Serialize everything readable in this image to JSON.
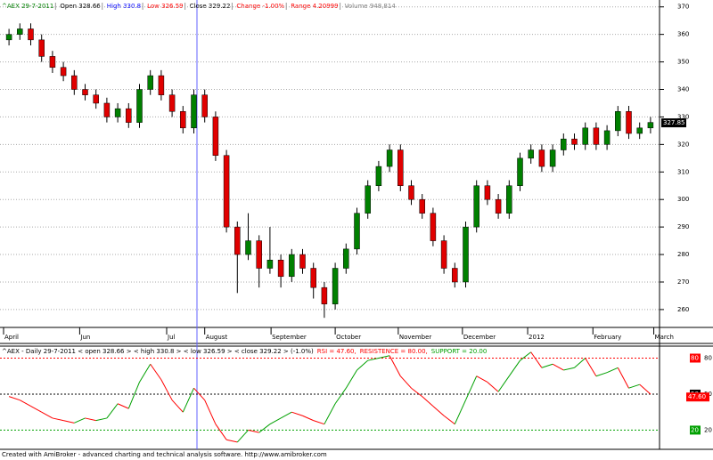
{
  "header": {
    "parts": [
      {
        "text": "^AEX 29-7-2011",
        "color": "#008000"
      },
      {
        "text": "Open 328.66",
        "color": "#000000"
      },
      {
        "text": "High 330.8",
        "color": "#0000ff"
      },
      {
        "text": "Low 326.59",
        "color": "#ff0000"
      },
      {
        "text": "Close 329.22",
        "color": "#000000"
      },
      {
        "text": "Change -1.00%",
        "color": "#ff0000"
      },
      {
        "text": "Range 4.20999",
        "color": "#ff0000"
      },
      {
        "text": "Volume 948,814",
        "color": "#808080"
      }
    ]
  },
  "chart_data": [
    {
      "type": "candlestick",
      "open": [
        358,
        360,
        362,
        358,
        352,
        348,
        345,
        340,
        338,
        335,
        330,
        333,
        328,
        340,
        345,
        338,
        332,
        326,
        338,
        330,
        316,
        290,
        280,
        285,
        275,
        278,
        272,
        280,
        275,
        268,
        262,
        275,
        282,
        295,
        305,
        312,
        318,
        305,
        300,
        295,
        285,
        275,
        270,
        290,
        305,
        300,
        295,
        305,
        315,
        318,
        312,
        318,
        322,
        320,
        326,
        320,
        325,
        332,
        324,
        326
      ],
      "high": [
        362,
        364,
        364,
        360,
        354,
        350,
        347,
        342,
        340,
        337,
        335,
        335,
        342,
        347,
        347,
        340,
        334,
        340,
        340,
        332,
        318,
        292,
        295,
        287,
        290,
        280,
        282,
        282,
        277,
        270,
        277,
        284,
        297,
        307,
        314,
        320,
        320,
        307,
        302,
        297,
        287,
        277,
        292,
        307,
        307,
        302,
        307,
        317,
        320,
        320,
        320,
        324,
        324,
        328,
        328,
        327,
        334,
        334,
        328,
        330
      ],
      "low": [
        356,
        358,
        356,
        350,
        346,
        343,
        338,
        336,
        333,
        328,
        328,
        326,
        326,
        338,
        336,
        330,
        324,
        324,
        328,
        314,
        288,
        266,
        278,
        268,
        273,
        268,
        270,
        273,
        264,
        257,
        260,
        273,
        280,
        293,
        303,
        310,
        303,
        298,
        293,
        283,
        273,
        268,
        268,
        288,
        298,
        293,
        293,
        303,
        313,
        310,
        310,
        316,
        318,
        318,
        318,
        318,
        323,
        322,
        322,
        324
      ],
      "close": [
        360,
        362,
        358,
        352,
        348,
        345,
        340,
        338,
        335,
        330,
        333,
        328,
        340,
        345,
        338,
        332,
        326,
        338,
        330,
        316,
        290,
        280,
        285,
        275,
        278,
        272,
        280,
        275,
        268,
        262,
        275,
        282,
        295,
        305,
        312,
        318,
        305,
        300,
        295,
        285,
        275,
        270,
        290,
        305,
        300,
        295,
        305,
        315,
        318,
        312,
        318,
        322,
        320,
        326,
        320,
        325,
        332,
        324,
        326,
        328
      ],
      "up_color": "#008000",
      "down_color": "#e00000",
      "xlim": [
        0,
        60
      ],
      "xticks": [
        {
          "value": 0,
          "label": "April"
        },
        {
          "value": 7,
          "label": "Jun"
        },
        {
          "value": 15,
          "label": "Jul"
        },
        {
          "value": 18.5,
          "label": "August"
        },
        {
          "value": 24.6,
          "label": "September"
        },
        {
          "value": 30.5,
          "label": "October"
        },
        {
          "value": 36.3,
          "label": "November"
        },
        {
          "value": 42.2,
          "label": "December"
        },
        {
          "value": 48.2,
          "label": "2012"
        },
        {
          "value": 54.2,
          "label": "February"
        },
        {
          "value": 59.8,
          "label": "March"
        }
      ],
      "ylim": [
        253.5,
        372.5
      ],
      "yticks": [
        260,
        270,
        280,
        290,
        300,
        310,
        320,
        330,
        340,
        350,
        360,
        370
      ],
      "grid": true,
      "last_value": 327.85
    },
    {
      "type": "line",
      "title_parts": [
        {
          "text": "^AEX - Daily 29-7-2011 < open 328.66 > < high 330.8 > < low 326.59 > < close 329.22 > (-1.0%)",
          "color": "#000000"
        },
        {
          "text": "RSI = 47.60,",
          "color": "#ff0000"
        },
        {
          "text": "RESISTENCE = 80.00,",
          "color": "#ff0000"
        },
        {
          "text": "SUPPORT = 20.00",
          "color": "#00a000"
        }
      ],
      "values": [
        48,
        45,
        40,
        35,
        30,
        28,
        26,
        30,
        28,
        30,
        42,
        38,
        60,
        75,
        62,
        45,
        35,
        55,
        45,
        25,
        12,
        10,
        20,
        18,
        25,
        30,
        35,
        32,
        28,
        25,
        42,
        55,
        70,
        78,
        80,
        82,
        65,
        55,
        48,
        40,
        32,
        25,
        45,
        65,
        60,
        52,
        65,
        78,
        85,
        72,
        75,
        70,
        72,
        80,
        65,
        68,
        72,
        55,
        58,
        50
      ],
      "up_color": "#00a000",
      "down_color": "#ff0000",
      "ylim": [
        4,
        90
      ],
      "yticks": [
        20,
        50,
        80
      ],
      "tick_colors": [
        "#00a000",
        "#000000",
        "#ff0000"
      ],
      "last_label": {
        "value": 47.6,
        "label": "47.60"
      }
    }
  ],
  "footer": "Created with AmiBroker - advanced charting and technical analysis software. http://www.amibroker.com"
}
